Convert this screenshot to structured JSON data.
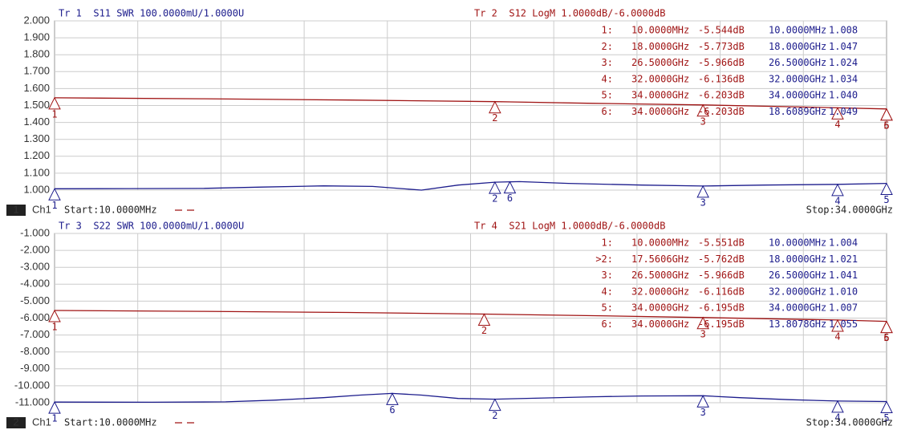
{
  "chart_data": [
    {
      "type": "line",
      "xlim": [
        0.01,
        34
      ],
      "ylim": [
        1,
        2
      ],
      "y2lim": [
        -11,
        -1
      ],
      "grid": true,
      "yticks": [
        {
          "value": 2,
          "label": "2.000"
        },
        {
          "value": 1.9,
          "label": "1.900"
        },
        {
          "value": 1.8,
          "label": "1.800"
        },
        {
          "value": 1.7,
          "label": "1.700"
        },
        {
          "value": 1.6,
          "label": "1.600"
        },
        {
          "value": 1.5,
          "label": "1.500"
        },
        {
          "value": 1.4,
          "label": "1.400"
        },
        {
          "value": 1.3,
          "label": "1.300"
        },
        {
          "value": 1.2,
          "label": "1.200"
        },
        {
          "value": 1.1,
          "label": "1.100"
        },
        {
          "value": 1,
          "label": "1.000"
        }
      ],
      "series": [
        {
          "name": "Tr 1  S11 SWR 100.0000mU/1.0000U",
          "color": "#1c1c8c",
          "x": [
            0.01,
            3,
            6,
            8.5,
            11,
            13,
            15,
            16.5,
            18,
            19,
            21,
            24,
            26.5,
            29,
            32,
            34
          ],
          "values": [
            1.008,
            1.009,
            1.01,
            1.018,
            1.025,
            1.022,
            1.0,
            1.03,
            1.047,
            1.05,
            1.04,
            1.03,
            1.024,
            1.03,
            1.034,
            1.04
          ],
          "markers": [
            {
              "label": "1",
              "x": 0.01,
              "value": 1.008
            },
            {
              "label": "2",
              "x": 18,
              "value": 1.047
            },
            {
              "label": "3",
              "x": 26.5,
              "value": 1.024
            },
            {
              "label": "4",
              "x": 32,
              "value": 1.034
            },
            {
              "label": "5",
              "x": 34,
              "value": 1.04
            },
            {
              "label": "6",
              "x": 18.6089,
              "value": 1.049
            }
          ]
        },
        {
          "name": "Tr 2  S12 LogM 1.0000dB/-6.0000dB",
          "color": "#a01414",
          "axis": "y2",
          "x": [
            0.01,
            6,
            12,
            18,
            22,
            26.5,
            30,
            32,
            34
          ],
          "values": [
            -5.544,
            -5.6,
            -5.68,
            -5.773,
            -5.87,
            -5.966,
            -6.07,
            -6.136,
            -6.203
          ],
          "markers": [
            {
              "label": "1",
              "x": 0.01,
              "value": -5.544
            },
            {
              "label": "2",
              "x": 18,
              "value": -5.773
            },
            {
              "label": "3",
              "x": 26.5,
              "value": -5.966
            },
            {
              "label": "4",
              "x": 32,
              "value": -6.136
            },
            {
              "label": "5",
              "x": 34,
              "value": -6.203
            },
            {
              "label": "6",
              "x": 34,
              "value": -6.203
            }
          ]
        }
      ],
      "marker_table": [
        [
          "1:",
          "10.0000MHz",
          "-5.544dB",
          "10.0000MHz",
          "1.008"
        ],
        [
          "2:",
          "18.0000GHz",
          "-5.773dB",
          "18.0000GHz",
          "1.047"
        ],
        [
          "3:",
          "26.5000GHz",
          "-5.966dB",
          "26.5000GHz",
          "1.024"
        ],
        [
          "4:",
          "32.0000GHz",
          "-6.136dB",
          "32.0000GHz",
          "1.034"
        ],
        [
          "5:",
          "34.0000GHz",
          "-6.203dB",
          "34.0000GHz",
          "1.040"
        ],
        [
          "6:",
          "34.0000GHz",
          "-6.203dB",
          "18.6089GHz",
          "1.049"
        ]
      ],
      "badge": "1",
      "channel": "Ch1",
      "start": "Start:10.0000MHz",
      "stop": "Stop:34.0000GHz"
    },
    {
      "type": "line",
      "xlim": [
        0.01,
        34
      ],
      "ylim": [
        -11,
        -1
      ],
      "y2lim": [
        1,
        2
      ],
      "grid": true,
      "yticks": [
        {
          "value": -1,
          "label": "-1.000"
        },
        {
          "value": -2,
          "label": "-2.000"
        },
        {
          "value": -3,
          "label": "-3.000"
        },
        {
          "value": -4,
          "label": "-4.000"
        },
        {
          "value": -5,
          "label": "-5.000"
        },
        {
          "value": -6,
          "label": "-6.000"
        },
        {
          "value": -7,
          "label": "-7.000"
        },
        {
          "value": -8,
          "label": "-8.000"
        },
        {
          "value": -9,
          "label": "-9.000"
        },
        {
          "value": -10,
          "label": "-10.000"
        },
        {
          "value": -11,
          "label": "-11.000"
        }
      ],
      "series": [
        {
          "name": "Tr 3  S22 SWR 100.0000mU/1.0000U",
          "color": "#1c1c8c",
          "axis": "y2",
          "x": [
            0.01,
            4,
            7,
            9,
            11,
            12.5,
            13.8,
            15,
            16.5,
            18,
            20,
            22,
            24,
            26.5,
            28,
            30,
            32,
            34
          ],
          "values": [
            1.004,
            1.003,
            1.005,
            1.015,
            1.03,
            1.045,
            1.055,
            1.045,
            1.025,
            1.021,
            1.028,
            1.035,
            1.04,
            1.041,
            1.03,
            1.018,
            1.01,
            1.007
          ],
          "markers": [
            {
              "label": "1",
              "x": 0.01,
              "value": 1.004
            },
            {
              "label": "2",
              "x": 18,
              "value": 1.021
            },
            {
              "label": "3",
              "x": 26.5,
              "value": 1.041
            },
            {
              "label": "4",
              "x": 32,
              "value": 1.01
            },
            {
              "label": "5",
              "x": 34,
              "value": 1.007
            },
            {
              "label": "6",
              "x": 13.8078,
              "value": 1.055
            }
          ]
        },
        {
          "name": "Tr 4  S21 LogM 1.0000dB/-6.0000dB",
          "color": "#a01414",
          "x": [
            0.01,
            6,
            12,
            17.5606,
            22,
            26.5,
            30,
            32,
            34
          ],
          "values": [
            -5.551,
            -5.6,
            -5.67,
            -5.762,
            -5.86,
            -5.966,
            -6.06,
            -6.116,
            -6.195
          ],
          "markers": [
            {
              "label": "1",
              "x": 0.01,
              "value": -5.551
            },
            {
              "label": "2",
              "x": 17.5606,
              "value": -5.762
            },
            {
              "label": "3",
              "x": 26.5,
              "value": -5.966
            },
            {
              "label": "4",
              "x": 32,
              "value": -6.116
            },
            {
              "label": "5",
              "x": 34,
              "value": -6.195
            },
            {
              "label": "6",
              "x": 34,
              "value": -6.195
            }
          ]
        }
      ],
      "marker_table": [
        [
          "1:",
          "10.0000MHz",
          "-5.551dB",
          "10.0000MHz",
          "1.004"
        ],
        [
          ">2:",
          "17.5606GHz",
          "-5.762dB",
          "18.0000GHz",
          "1.021"
        ],
        [
          "3:",
          "26.5000GHz",
          "-5.966dB",
          "26.5000GHz",
          "1.041"
        ],
        [
          "4:",
          "32.0000GHz",
          "-6.116dB",
          "32.0000GHz",
          "1.010"
        ],
        [
          "5:",
          "34.0000GHz",
          "-6.195dB",
          "34.0000GHz",
          "1.007"
        ],
        [
          "6:",
          "34.0000GHz",
          "-6.195dB",
          "13.8078GHz",
          "1.055"
        ]
      ],
      "badge": "2",
      "channel": "Ch1",
      "start": "Start:10.0000MHz",
      "stop": "Stop:34.0000GHz"
    }
  ]
}
